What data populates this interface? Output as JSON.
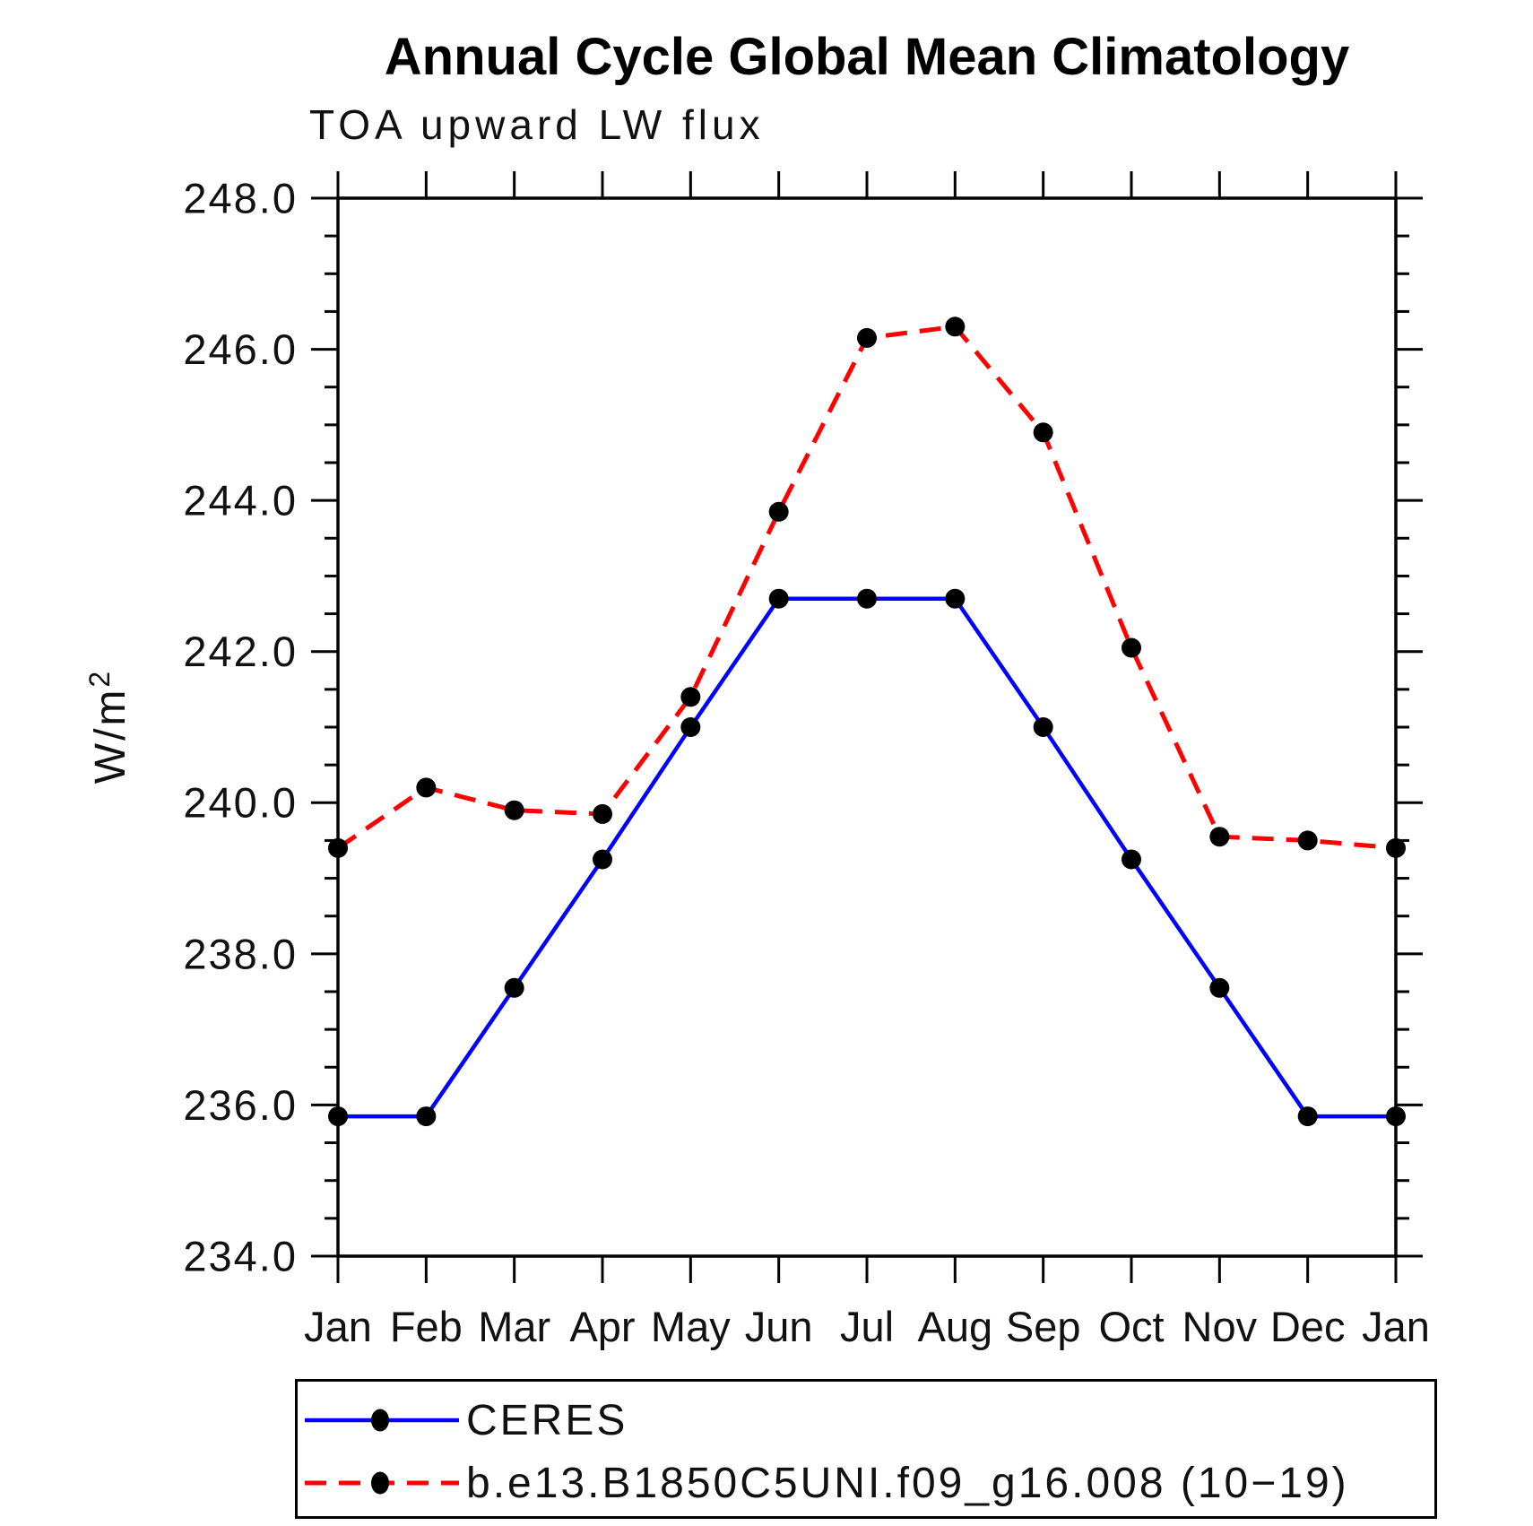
{
  "chart_data": {
    "type": "line",
    "title": "Annual Cycle Global Mean Climatology",
    "subtitle": "TOA upward LW flux",
    "ylabel": "W/m²",
    "ylabel_base": "W/m",
    "ylabel_sup": "2",
    "categories": [
      "Jan",
      "Feb",
      "Mar",
      "Apr",
      "May",
      "Jun",
      "Jul",
      "Aug",
      "Sep",
      "Oct",
      "Nov",
      "Dec",
      "Jan"
    ],
    "series": [
      {
        "name": "CERES",
        "color": "#0000ff",
        "style": "solid",
        "line_width": 4.5,
        "marker": "black-dot",
        "values": [
          235.85,
          235.85,
          237.55,
          239.25,
          241.0,
          242.7,
          242.7,
          242.7,
          241.0,
          239.25,
          237.55,
          235.85,
          235.85
        ]
      },
      {
        "name": "b.e13.B1850C5UNI.f09_g16.008 (10−19)",
        "color": "#ff0000",
        "style": "dashed",
        "line_width": 5,
        "marker": "black-dot",
        "values": [
          239.4,
          240.2,
          239.9,
          239.85,
          241.4,
          243.85,
          246.15,
          246.3,
          244.9,
          242.05,
          239.55,
          239.5,
          239.4
        ]
      }
    ],
    "ylim": [
      234.0,
      248.0
    ],
    "ytick_major": [
      234,
      236,
      238,
      240,
      242,
      244,
      246,
      248
    ],
    "ytick_labels": [
      "234.0",
      "236.0",
      "238.0",
      "240.0",
      "242.0",
      "244.0",
      "246.0",
      "248.0"
    ],
    "ytick_minor_step": 0.5,
    "marker_color": "#000000",
    "axis_color": "#000000",
    "grid": false,
    "legend_position": "bottom-left"
  }
}
